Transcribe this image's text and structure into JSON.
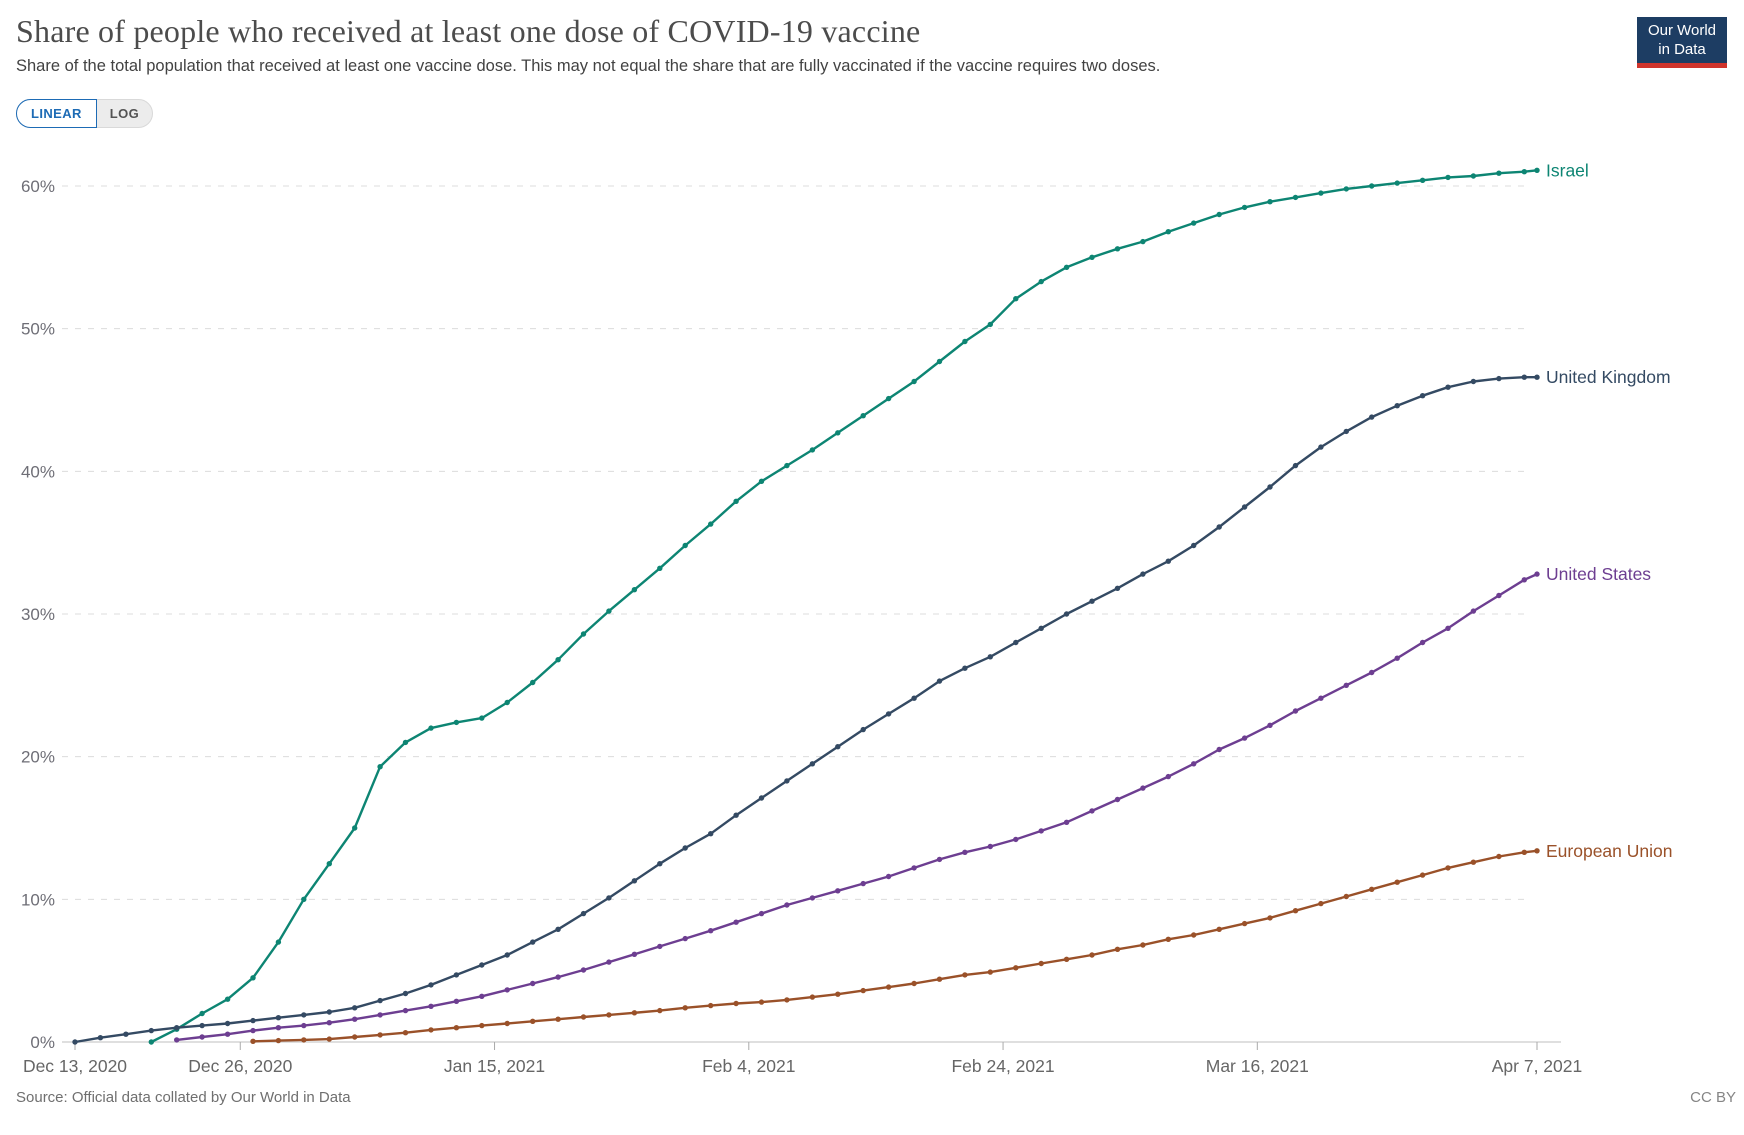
{
  "header": {
    "title": "Share of people who received at least one dose of COVID-19 vaccine",
    "subtitle": "Share of the total population that received at least one vaccine dose. This may not equal the share that are fully vaccinated if the vaccine requires two doses.",
    "logo": {
      "line1": "Our World",
      "line2": "in Data",
      "bg_color": "#1d3d63",
      "accent_color": "#d0342c"
    }
  },
  "controls": {
    "linear_label": "LINEAR",
    "log_label": "LOG",
    "active": "LINEAR",
    "active_color": "#1d6bb5"
  },
  "footer": {
    "source": "Source: Official data collated by Our World in Data",
    "license": "CC BY"
  },
  "chart_data": {
    "type": "line",
    "title": "Share of people who received at least one dose of COVID-19 vaccine",
    "subtitle": "Share of the total population that received at least one vaccine dose. This may not equal the share that are fully vaccinated if the vaccine requires two doses.",
    "grid": true,
    "legend_position": "line-end-labels",
    "y_axis": {
      "unit": "%",
      "range": [
        0,
        63
      ],
      "ticks": [
        0,
        10,
        20,
        30,
        40,
        50,
        60
      ],
      "labels": [
        "0%",
        "10%",
        "20%",
        "30%",
        "40%",
        "50%",
        "60%"
      ]
    },
    "x_axis": {
      "range_days": [
        0,
        115
      ],
      "day0_date": "Dec 13, 2020",
      "tick_days": [
        0,
        13,
        33,
        53,
        73,
        93,
        115
      ],
      "label_dates": [
        "Dec 13, 2020",
        "Dec 26, 2020",
        "Jan 15, 2021",
        "Feb 4, 2021",
        "Feb 24, 2021",
        "Mar 16, 2021",
        "Apr 7, 2021"
      ]
    },
    "x_days": [
      0,
      2,
      4,
      6,
      8,
      10,
      12,
      14,
      16,
      18,
      20,
      22,
      24,
      26,
      28,
      30,
      32,
      34,
      36,
      38,
      40,
      42,
      44,
      46,
      48,
      50,
      52,
      54,
      56,
      58,
      60,
      62,
      64,
      66,
      68,
      70,
      72,
      74,
      76,
      78,
      80,
      82,
      84,
      86,
      88,
      90,
      92,
      94,
      96,
      98,
      100,
      102,
      104,
      106,
      108,
      110,
      112,
      114,
      115
    ],
    "series": [
      {
        "name": "Israel",
        "color": "#0d8573",
        "values": [
          null,
          null,
          null,
          0.0,
          0.9,
          2.0,
          3.0,
          4.5,
          7.0,
          10.0,
          12.5,
          15.0,
          19.3,
          21.0,
          22.0,
          22.4,
          22.7,
          23.8,
          25.2,
          26.8,
          28.6,
          30.2,
          31.7,
          33.2,
          34.8,
          36.3,
          37.9,
          39.3,
          40.4,
          41.5,
          42.7,
          43.9,
          45.1,
          46.3,
          47.7,
          49.1,
          50.3,
          52.1,
          53.3,
          54.3,
          55.0,
          55.6,
          56.1,
          56.8,
          57.4,
          58.0,
          58.5,
          58.9,
          59.2,
          59.5,
          59.8,
          60.0,
          60.2,
          60.4,
          60.6,
          60.7,
          60.9,
          61.0,
          61.1
        ]
      },
      {
        "name": "United Kingdom",
        "color": "#344a63",
        "values": [
          0.0,
          0.3,
          0.55,
          0.8,
          1.0,
          1.15,
          1.3,
          1.5,
          1.7,
          1.9,
          2.1,
          2.4,
          2.9,
          3.4,
          4.0,
          4.7,
          5.4,
          6.1,
          7.0,
          7.9,
          9.0,
          10.1,
          11.3,
          12.5,
          13.6,
          14.6,
          15.9,
          17.1,
          18.3,
          19.5,
          20.7,
          21.9,
          23.0,
          24.1,
          25.3,
          26.2,
          27.0,
          28.0,
          29.0,
          30.0,
          30.9,
          31.8,
          32.8,
          33.7,
          34.8,
          36.1,
          37.5,
          38.9,
          40.4,
          41.7,
          42.8,
          43.8,
          44.6,
          45.3,
          45.9,
          46.3,
          46.5,
          46.6,
          46.6
        ]
      },
      {
        "name": "United States",
        "color": "#6d3e91",
        "values": [
          null,
          null,
          null,
          null,
          0.15,
          0.35,
          0.55,
          0.8,
          1.0,
          1.15,
          1.35,
          1.6,
          1.9,
          2.2,
          2.5,
          2.85,
          3.2,
          3.65,
          4.1,
          4.55,
          5.05,
          5.6,
          6.15,
          6.7,
          7.25,
          7.8,
          8.4,
          9.0,
          9.6,
          10.1,
          10.6,
          11.1,
          11.6,
          12.2,
          12.8,
          13.3,
          13.7,
          14.2,
          14.8,
          15.4,
          16.2,
          17.0,
          17.8,
          18.6,
          19.5,
          20.5,
          21.3,
          22.2,
          23.2,
          24.1,
          25.0,
          25.9,
          26.9,
          28.0,
          29.0,
          30.2,
          31.3,
          32.4,
          32.8
        ]
      },
      {
        "name": "European Union",
        "color": "#9a5129",
        "values": [
          null,
          null,
          null,
          null,
          null,
          null,
          null,
          0.05,
          0.1,
          0.15,
          0.2,
          0.35,
          0.5,
          0.65,
          0.85,
          1.0,
          1.15,
          1.3,
          1.45,
          1.6,
          1.75,
          1.9,
          2.05,
          2.2,
          2.4,
          2.55,
          2.7,
          2.8,
          2.95,
          3.15,
          3.35,
          3.6,
          3.85,
          4.1,
          4.4,
          4.7,
          4.9,
          5.2,
          5.5,
          5.8,
          6.1,
          6.5,
          6.8,
          7.2,
          7.5,
          7.9,
          8.3,
          8.7,
          9.2,
          9.7,
          10.2,
          10.7,
          11.2,
          11.7,
          12.2,
          12.6,
          13.0,
          13.3,
          13.4
        ]
      }
    ]
  }
}
